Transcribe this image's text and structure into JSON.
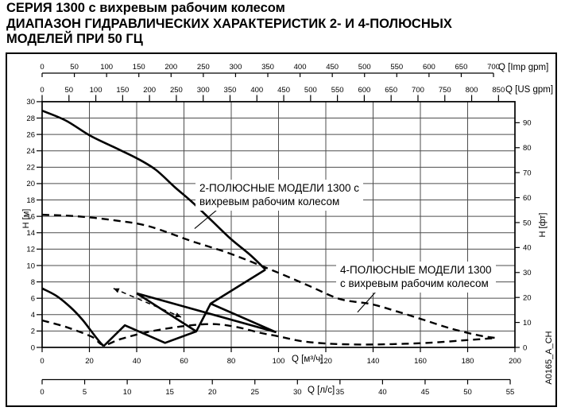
{
  "title": {
    "line1": "СЕРИЯ 1300 с вихревым рабочим колесом",
    "line2": "ДИАПАЗОН ГИДРАВЛИЧЕСКИХ ХАРАКТЕРИСТИК 2- И 4-ПОЛЮСНЫХ",
    "line3": "МОДЕЛЕЙ ПРИ 50 ГЦ"
  },
  "side_code": "A0165_A_CH",
  "colors": {
    "ink": "#000000",
    "grid": "#4d4d4d",
    "background": "#ffffff"
  },
  "axes": {
    "imp_gpm": {
      "unit": "Q [Imp gpm]",
      "ticks": [
        0,
        50,
        100,
        150,
        200,
        250,
        300,
        350,
        400,
        450,
        500,
        550,
        600,
        650,
        700
      ]
    },
    "us_gpm": {
      "unit": "Q [US gpm]",
      "ticks": [
        0,
        50,
        100,
        150,
        200,
        250,
        300,
        350,
        400,
        450,
        500,
        550,
        600,
        650,
        700,
        750,
        800,
        850
      ]
    },
    "m3h": {
      "unit": "Q [м³/ч]",
      "ticks": [
        0,
        20,
        40,
        60,
        80,
        100,
        120,
        140,
        160,
        180,
        200
      ]
    },
    "l_s": {
      "unit": "Q [л/с]",
      "ticks": [
        0,
        5,
        10,
        15,
        20,
        25,
        30,
        35,
        40,
        45,
        50,
        55
      ]
    },
    "h_m": {
      "unit": "H [м]",
      "ticks": [
        0,
        2,
        4,
        6,
        8,
        10,
        12,
        14,
        16,
        18,
        20,
        22,
        24,
        26,
        28,
        30
      ]
    },
    "h_ft": {
      "unit": "H [фт]",
      "ticks": [
        0,
        10,
        20,
        30,
        40,
        50,
        60,
        70,
        80,
        90
      ]
    }
  },
  "annotations": {
    "two_pole": {
      "line1": "2-ПОЛЮСНЫЕ МОДЕЛИ 1300 с",
      "line2": "вихревым рабочим колесом"
    },
    "four_pole": {
      "line1": "4-ПОЛЮСНЫЕ МОДЕЛИ 1300",
      "line2": "с вихревым рабочим колесом"
    }
  },
  "chart_data": {
    "type": "line",
    "title": "Диапазон гидравлических характеристик 2- и 4-полюсных моделей при 50 Гц",
    "xlabel": "Q [м³/ч]",
    "ylabel": "H [м]",
    "xlim": [
      0,
      200
    ],
    "ylim": [
      0,
      30
    ],
    "grid": true,
    "x_axes": [
      {
        "unit": "Imp gpm",
        "range": [
          0,
          700
        ]
      },
      {
        "unit": "US gpm",
        "range": [
          0,
          850
        ]
      },
      {
        "unit": "м³/ч",
        "range": [
          0,
          200
        ]
      },
      {
        "unit": "л/с",
        "range": [
          0,
          55
        ]
      }
    ],
    "y_axes": [
      {
        "unit": "м",
        "range": [
          0,
          30
        ]
      },
      {
        "unit": "фт",
        "range": [
          0,
          90
        ]
      }
    ],
    "series": [
      {
        "name": "2-pole-upper-envelope",
        "style": "solid",
        "smooth": true,
        "points": [
          [
            0,
            28.9
          ],
          [
            10,
            27.7
          ],
          [
            20,
            25.9
          ],
          [
            30,
            24.5
          ],
          [
            40,
            23.1
          ],
          [
            48,
            21.7
          ],
          [
            56,
            19.6
          ],
          [
            64,
            17.6
          ],
          [
            72,
            15.4
          ],
          [
            80,
            13.2
          ],
          [
            88,
            11.3
          ],
          [
            94.5,
            9.5
          ]
        ]
      },
      {
        "name": "2-pole-envelope-closure",
        "style": "solid",
        "smooth": false,
        "points": [
          [
            94.5,
            9.5
          ],
          [
            71.3,
            5.35
          ],
          [
            99,
            1.85
          ]
        ]
      },
      {
        "name": "2-pole-small-curve",
        "style": "solid",
        "smooth": true,
        "points": [
          [
            0,
            7.2
          ],
          [
            6,
            6.3
          ],
          [
            12,
            4.9
          ],
          [
            17,
            3.4
          ],
          [
            21,
            1.9
          ],
          [
            24,
            0.8
          ],
          [
            26,
            0.15
          ]
        ]
      },
      {
        "name": "2-pole-lower-zigzag",
        "style": "solid",
        "smooth": false,
        "points": [
          [
            26,
            0.15
          ],
          [
            35,
            2.7
          ],
          [
            52,
            0.55
          ],
          [
            65.2,
            1.95
          ],
          [
            71.3,
            5.35
          ]
        ]
      },
      {
        "name": "2-pole-mid-curve-steep",
        "style": "solid",
        "smooth": false,
        "points": [
          [
            40,
            6.6
          ],
          [
            65.2,
            1.95
          ]
        ]
      },
      {
        "name": "2-pole-mid-curve-long",
        "style": "solid",
        "smooth": false,
        "points": [
          [
            40,
            6.6
          ],
          [
            99,
            1.85
          ]
        ]
      },
      {
        "name": "4-pole-upper-envelope",
        "style": "dashed",
        "smooth": true,
        "points": [
          [
            0,
            16.2
          ],
          [
            15,
            16.0
          ],
          [
            31,
            15.5
          ],
          [
            45,
            14.8
          ],
          [
            63,
            13.0
          ],
          [
            80,
            11.4
          ],
          [
            100,
            9.1
          ],
          [
            113,
            7.5
          ],
          [
            126,
            5.9
          ],
          [
            139,
            5.3
          ],
          [
            150,
            4.4
          ],
          [
            161,
            3.4
          ],
          [
            173,
            2.3
          ],
          [
            185,
            1.45
          ],
          [
            192,
            1.15
          ]
        ]
      },
      {
        "name": "4-pole-lower-envelope",
        "style": "dashed",
        "smooth": true,
        "points": [
          [
            0,
            3.3
          ],
          [
            10,
            2.5
          ],
          [
            21,
            1.3
          ],
          [
            26,
            0.3
          ],
          [
            33,
            1.0
          ],
          [
            45,
            1.9
          ],
          [
            60,
            2.6
          ],
          [
            72,
            2.85
          ],
          [
            82,
            2.5
          ],
          [
            92,
            1.8
          ],
          [
            100,
            1.35
          ],
          [
            110,
            0.75
          ],
          [
            122,
            0.45
          ],
          [
            135,
            0.35
          ],
          [
            148,
            0.4
          ],
          [
            163,
            0.55
          ],
          [
            178,
            0.85
          ],
          [
            192,
            1.15
          ]
        ]
      },
      {
        "name": "range-arrow",
        "style": "arrow-dashed",
        "smooth": false,
        "points": [
          [
            30.2,
            7.2
          ],
          [
            58.8,
            3.7
          ]
        ]
      },
      {
        "name": "leader-2-pole",
        "style": "leader",
        "smooth": false,
        "points": [
          [
            64.5,
            14.5
          ],
          [
            74,
            16.8
          ]
        ]
      },
      {
        "name": "leader-4-pole",
        "style": "leader",
        "smooth": false,
        "points": [
          [
            133.4,
            4.3
          ],
          [
            141.2,
            6.8
          ]
        ]
      }
    ]
  }
}
